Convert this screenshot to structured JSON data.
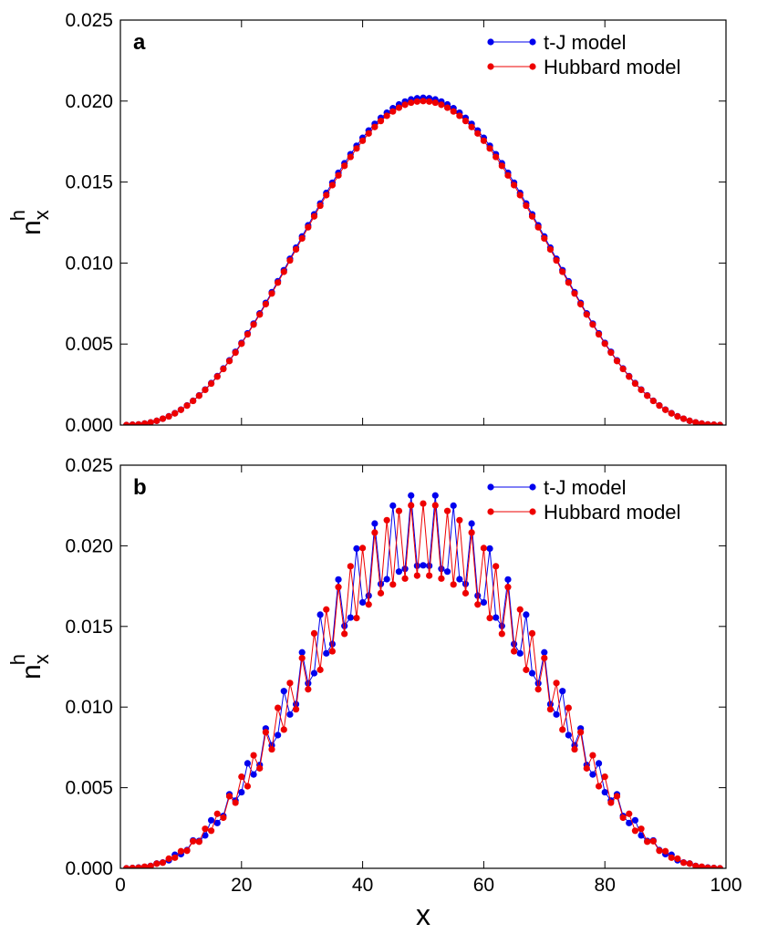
{
  "chart_data": [
    {
      "type": "line",
      "panel_label": "a",
      "ylabel": "n",
      "ylabel_sub": "x",
      "ylabel_sup": "h",
      "xlim": [
        0,
        100
      ],
      "xticks": [
        0,
        20,
        40,
        60,
        80,
        100
      ],
      "xtick_labels": false,
      "ylim": [
        0,
        0.025
      ],
      "yticks": [
        {
          "value": 0,
          "label": "0.000"
        },
        {
          "value": 0.005,
          "label": "0.005"
        },
        {
          "value": 0.01,
          "label": "0.010"
        },
        {
          "value": 0.015,
          "label": "0.015"
        },
        {
          "value": 0.02,
          "label": "0.020"
        },
        {
          "value": 0.025,
          "label": "0.025"
        }
      ],
      "legend": "upper right",
      "x": [
        1,
        2,
        3,
        4,
        5,
        6,
        7,
        8,
        9,
        10,
        11,
        12,
        13,
        14,
        15,
        16,
        17,
        18,
        19,
        20,
        21,
        22,
        23,
        24,
        25,
        26,
        27,
        28,
        29,
        30,
        31,
        32,
        33,
        34,
        35,
        36,
        37,
        38,
        39,
        40,
        41,
        42,
        43,
        44,
        45,
        46,
        47,
        48,
        49,
        50,
        51,
        52,
        53,
        54,
        55,
        56,
        57,
        58,
        59,
        60,
        61,
        62,
        63,
        64,
        65,
        66,
        67,
        68,
        69,
        70,
        71,
        72,
        73,
        74,
        75,
        76,
        77,
        78,
        79,
        80,
        81,
        82,
        83,
        84,
        85,
        86,
        87,
        88,
        89,
        90,
        91,
        92,
        93,
        94,
        95,
        96,
        97,
        98,
        99
      ],
      "series": [
        {
          "name": "t-J model",
          "color": "#0000ee",
          "values": [
            0,
            2e-05,
            4e-05,
            9e-05,
            0.00016,
            0.00026,
            0.00039,
            0.00054,
            0.00073,
            0.00095,
            0.00121,
            0.0015,
            0.00183,
            0.00219,
            0.00259,
            0.00302,
            0.00349,
            0.00399,
            0.00452,
            0.00507,
            0.00566,
            0.00626,
            0.00689,
            0.00754,
            0.0082,
            0.00888,
            0.00956,
            0.01026,
            0.01095,
            0.01164,
            0.01233,
            0.01301,
            0.01368,
            0.01433,
            0.01496,
            0.01557,
            0.01616,
            0.01672,
            0.01724,
            0.01773,
            0.01818,
            0.01859,
            0.01896,
            0.01928,
            0.01956,
            0.01979,
            0.01997,
            0.0201,
            0.02017,
            0.0202,
            0.02017,
            0.0201,
            0.01997,
            0.01979,
            0.01956,
            0.01928,
            0.01896,
            0.01859,
            0.01818,
            0.01773,
            0.01724,
            0.01672,
            0.01616,
            0.01557,
            0.01496,
            0.01433,
            0.01368,
            0.01301,
            0.01233,
            0.01164,
            0.01095,
            0.01026,
            0.00956,
            0.00888,
            0.0082,
            0.00754,
            0.00689,
            0.00626,
            0.00566,
            0.00507,
            0.00452,
            0.00399,
            0.00349,
            0.00302,
            0.00259,
            0.00219,
            0.00183,
            0.0015,
            0.00121,
            0.00095,
            0.00073,
            0.00054,
            0.00039,
            0.00026,
            0.00016,
            9e-05,
            4e-05,
            2e-05,
            0
          ]
        },
        {
          "name": "Hubbard model",
          "color": "#ee0000",
          "values": [
            0,
            2e-05,
            4e-05,
            9e-05,
            0.00016,
            0.00026,
            0.00039,
            0.00053,
            0.00072,
            0.00094,
            0.0012,
            0.00149,
            0.00181,
            0.00217,
            0.00256,
            0.00299,
            0.00346,
            0.00395,
            0.00447,
            0.00502,
            0.0056,
            0.0062,
            0.00682,
            0.00746,
            0.00812,
            0.00879,
            0.00946,
            0.01016,
            0.01084,
            0.01152,
            0.01221,
            0.01288,
            0.01354,
            0.01419,
            0.01481,
            0.01541,
            0.016,
            0.01655,
            0.01707,
            0.01755,
            0.018,
            0.0184,
            0.01877,
            0.01909,
            0.01936,
            0.01959,
            0.01977,
            0.0199,
            0.01997,
            0.02,
            0.01997,
            0.0199,
            0.01977,
            0.01959,
            0.01936,
            0.01909,
            0.01877,
            0.0184,
            0.018,
            0.01755,
            0.01707,
            0.01655,
            0.016,
            0.01541,
            0.01481,
            0.01419,
            0.01354,
            0.01288,
            0.01221,
            0.01152,
            0.01084,
            0.01016,
            0.00946,
            0.00879,
            0.00812,
            0.00746,
            0.00682,
            0.0062,
            0.0056,
            0.00502,
            0.00447,
            0.00395,
            0.00346,
            0.00299,
            0.00256,
            0.00217,
            0.00181,
            0.00149,
            0.0012,
            0.00094,
            0.00072,
            0.00053,
            0.00039,
            0.00026,
            0.00016,
            9e-05,
            4e-05,
            2e-05,
            0
          ]
        }
      ]
    },
    {
      "type": "line",
      "panel_label": "b",
      "ylabel": "n",
      "ylabel_sub": "x",
      "ylabel_sup": "h",
      "xlabel": "x",
      "xlim": [
        0,
        100
      ],
      "xticks": [
        0,
        20,
        40,
        60,
        80,
        100
      ],
      "xtick_labels": true,
      "ylim": [
        0,
        0.025
      ],
      "yticks": [
        {
          "value": 0,
          "label": "0.000"
        },
        {
          "value": 0.005,
          "label": "0.005"
        },
        {
          "value": 0.01,
          "label": "0.010"
        },
        {
          "value": 0.015,
          "label": "0.015"
        },
        {
          "value": 0.02,
          "label": "0.020"
        },
        {
          "value": 0.025,
          "label": "0.025"
        }
      ],
      "legend": "upper right",
      "x": [
        1,
        2,
        3,
        4,
        5,
        6,
        7,
        8,
        9,
        10,
        11,
        12,
        13,
        14,
        15,
        16,
        17,
        18,
        19,
        20,
        21,
        22,
        23,
        24,
        25,
        26,
        27,
        28,
        29,
        30,
        31,
        32,
        33,
        34,
        35,
        36,
        37,
        38,
        39,
        40,
        41,
        42,
        43,
        44,
        45,
        46,
        47,
        48,
        49,
        50,
        51,
        52,
        53,
        54,
        55,
        56,
        57,
        58,
        59,
        60,
        61,
        62,
        63,
        64,
        65,
        66,
        67,
        68,
        69,
        70,
        71,
        72,
        73,
        74,
        75,
        76,
        77,
        78,
        79,
        80,
        81,
        82,
        83,
        84,
        85,
        86,
        87,
        88,
        89,
        90,
        91,
        92,
        93,
        94,
        95,
        96,
        97,
        98,
        99
      ],
      "series": [
        {
          "name": "t-J model",
          "color": "#0000ee",
          "values": [
            0,
            2e-05,
            5e-05,
            8e-05,
            0.00015,
            0.0003,
            0.00036,
            0.0005,
            0.00084,
            0.00088,
            0.00113,
            0.00173,
            0.0017,
            0.00204,
            0.00298,
            0.00281,
            0.00325,
            0.00459,
            0.0042,
            0.00472,
            0.00651,
            0.00582,
            0.00641,
            0.00867,
            0.00763,
            0.00826,
            0.01099,
            0.00954,
            0.01018,
            0.01339,
            0.01147,
            0.0121,
            0.01573,
            0.01333,
            0.01391,
            0.01791,
            0.01503,
            0.01555,
            0.01983,
            0.01649,
            0.01691,
            0.02138,
            0.01763,
            0.01793,
            0.02249,
            0.0184,
            0.01857,
            0.02312,
            0.01876,
            0.01879,
            0.01876,
            0.02312,
            0.01857,
            0.0184,
            0.02249,
            0.01793,
            0.01763,
            0.02138,
            0.01691,
            0.01649,
            0.01983,
            0.01555,
            0.01503,
            0.01791,
            0.01391,
            0.01333,
            0.01573,
            0.0121,
            0.01147,
            0.01339,
            0.01018,
            0.00954,
            0.01099,
            0.00826,
            0.00763,
            0.00867,
            0.00641,
            0.00582,
            0.00651,
            0.00472,
            0.0042,
            0.00459,
            0.00325,
            0.00281,
            0.00298,
            0.00204,
            0.0017,
            0.00173,
            0.00113,
            0.00088,
            0.00084,
            0.0005,
            0.00036,
            0.0003,
            0.00015,
            8e-05,
            5e-05,
            2e-05,
            0
          ]
        },
        {
          "name": "Hubbard model",
          "color": "#ee0000",
          "values": [
            0,
            2e-05,
            4e-05,
            0.0001,
            0.00014,
            0.00029,
            0.00035,
            0.0006,
            0.00066,
            0.00106,
            0.00109,
            0.00168,
            0.00165,
            0.00245,
            0.00233,
            0.00338,
            0.00314,
            0.00447,
            0.00407,
            0.00568,
            0.00509,
            0.00701,
            0.0062,
            0.00844,
            0.00738,
            0.00995,
            0.0086,
            0.01149,
            0.00986,
            0.01304,
            0.0111,
            0.01457,
            0.01231,
            0.01605,
            0.01346,
            0.01744,
            0.01454,
            0.01873,
            0.01552,
            0.01986,
            0.01636,
            0.02082,
            0.01706,
            0.02159,
            0.0176,
            0.02216,
            0.01797,
            0.02251,
            0.01815,
            0.02262,
            0.01815,
            0.02251,
            0.01797,
            0.02216,
            0.0176,
            0.02159,
            0.01706,
            0.02082,
            0.01636,
            0.01986,
            0.01552,
            0.01873,
            0.01454,
            0.01744,
            0.01346,
            0.01605,
            0.01231,
            0.01457,
            0.0111,
            0.01304,
            0.00986,
            0.01149,
            0.0086,
            0.00995,
            0.00738,
            0.00844,
            0.0062,
            0.00701,
            0.00509,
            0.00568,
            0.00407,
            0.00447,
            0.00314,
            0.00338,
            0.00233,
            0.00245,
            0.00165,
            0.00168,
            0.00109,
            0.00106,
            0.00066,
            0.0006,
            0.00035,
            0.00029,
            0.00014,
            0.0001,
            4e-05,
            2e-05,
            0
          ]
        }
      ]
    }
  ]
}
